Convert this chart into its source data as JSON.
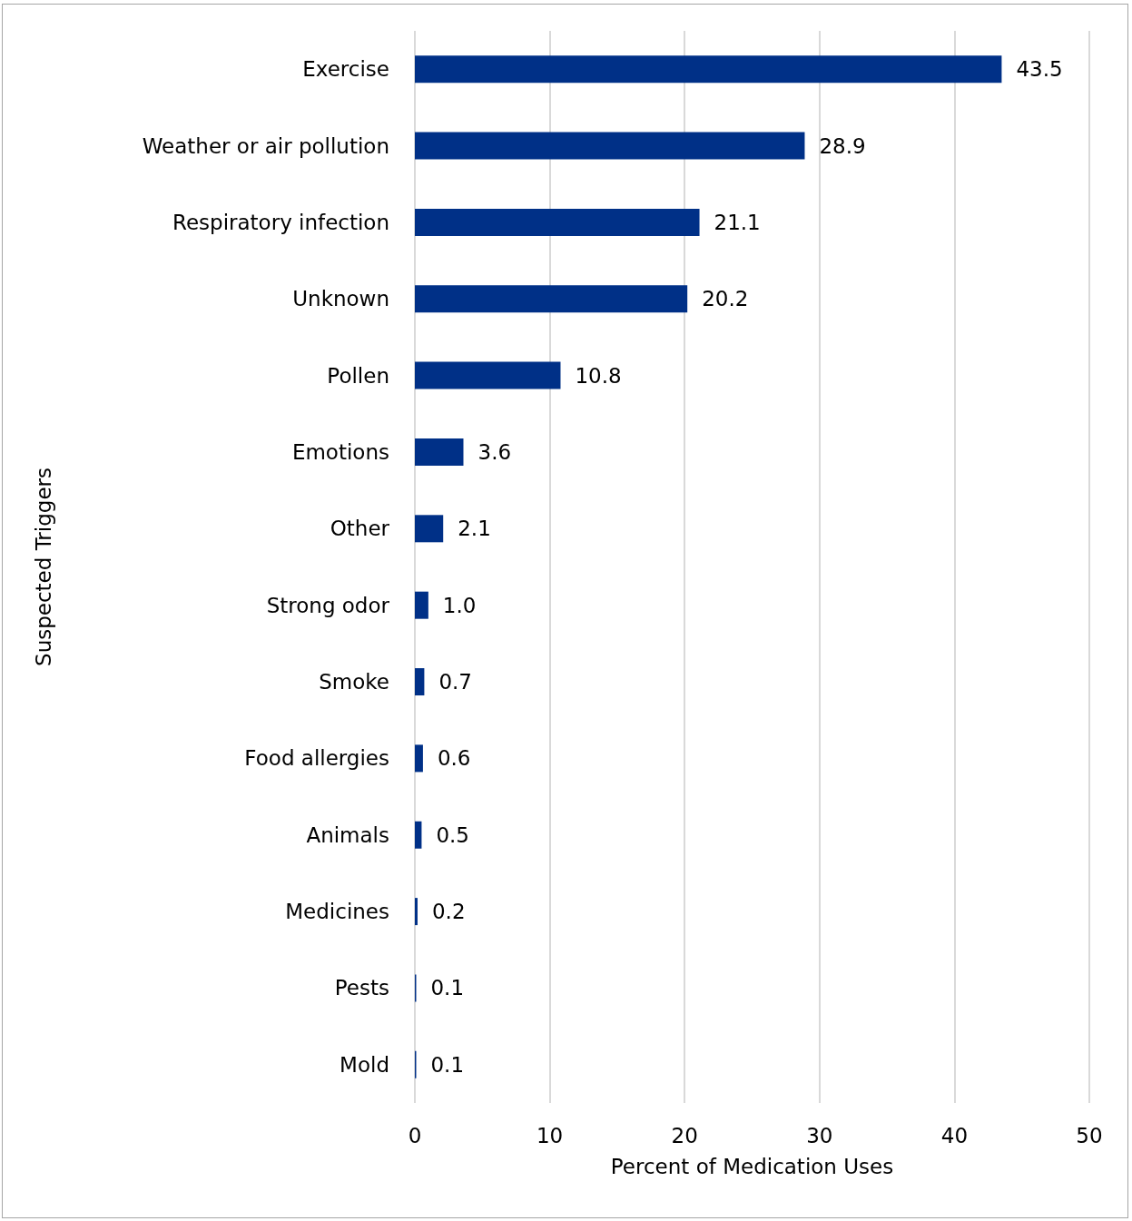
{
  "chart_data": {
    "type": "bar",
    "orientation": "horizontal",
    "xlabel": "Percent of Medication Uses",
    "ylabel": "Suspected Triggers",
    "categories": [
      "Exercise",
      "Weather or air pollution",
      "Respiratory infection",
      "Unknown",
      "Pollen",
      "Emotions",
      "Other",
      "Strong odor",
      "Smoke",
      "Food allergies",
      "Animals",
      "Medicines",
      "Pests",
      "Mold"
    ],
    "values": [
      43.5,
      28.9,
      21.1,
      20.2,
      10.8,
      3.6,
      2.1,
      1.0,
      0.7,
      0.6,
      0.5,
      0.2,
      0.1,
      0.1
    ],
    "value_labels": [
      "43.5",
      "28.9",
      "21.1",
      "20.2",
      "10.8",
      "3.6",
      "2.1",
      "1.0",
      "0.7",
      "0.6",
      "0.5",
      "0.2",
      "0.1",
      "0.1"
    ],
    "color": "#003087",
    "xlim": [
      0,
      50
    ],
    "xticks": [
      0,
      10,
      20,
      30,
      40,
      50
    ],
    "grid": "x"
  }
}
